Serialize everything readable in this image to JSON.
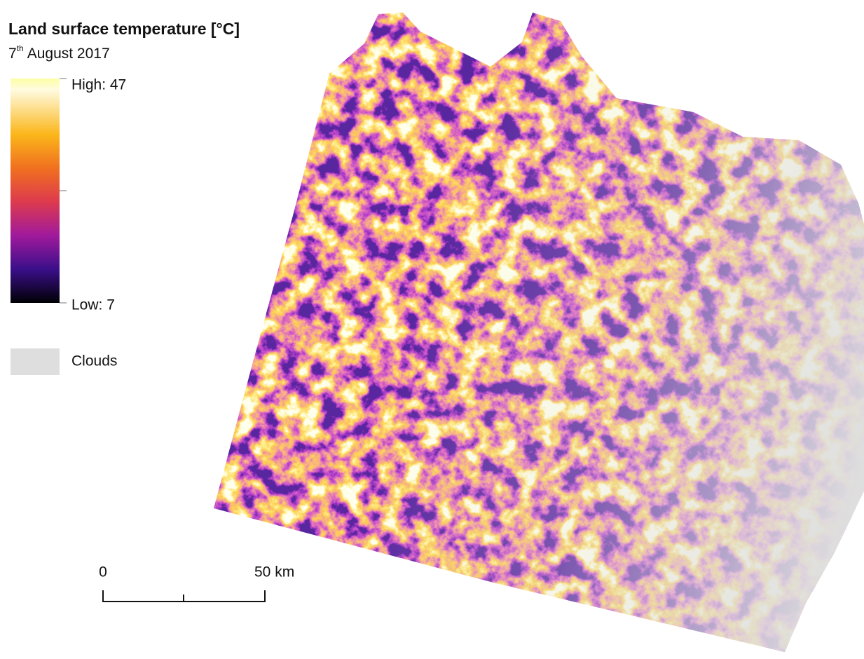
{
  "title": "Land surface temperature [°C]",
  "date": {
    "day": "7",
    "suffix": "th",
    "rest": "August 2017"
  },
  "legend": {
    "high": "High: 47",
    "low": "Low: 7",
    "clouds": "Clouds"
  },
  "scale_bar": {
    "start": "0",
    "end": "50 km"
  }
}
